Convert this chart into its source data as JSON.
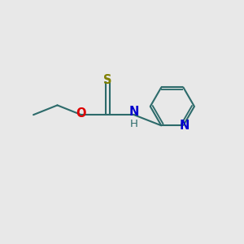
{
  "background_color": "#e8e8e8",
  "bond_color": "#2d6b6b",
  "bond_width": 1.5,
  "S_color": "#808000",
  "O_color": "#dd0000",
  "N_color": "#0000cc",
  "H_color": "#2d6b6b",
  "figsize": [
    3.0,
    3.0
  ],
  "dpi": 100,
  "xlim": [
    0,
    10
  ],
  "ylim": [
    0,
    10
  ]
}
